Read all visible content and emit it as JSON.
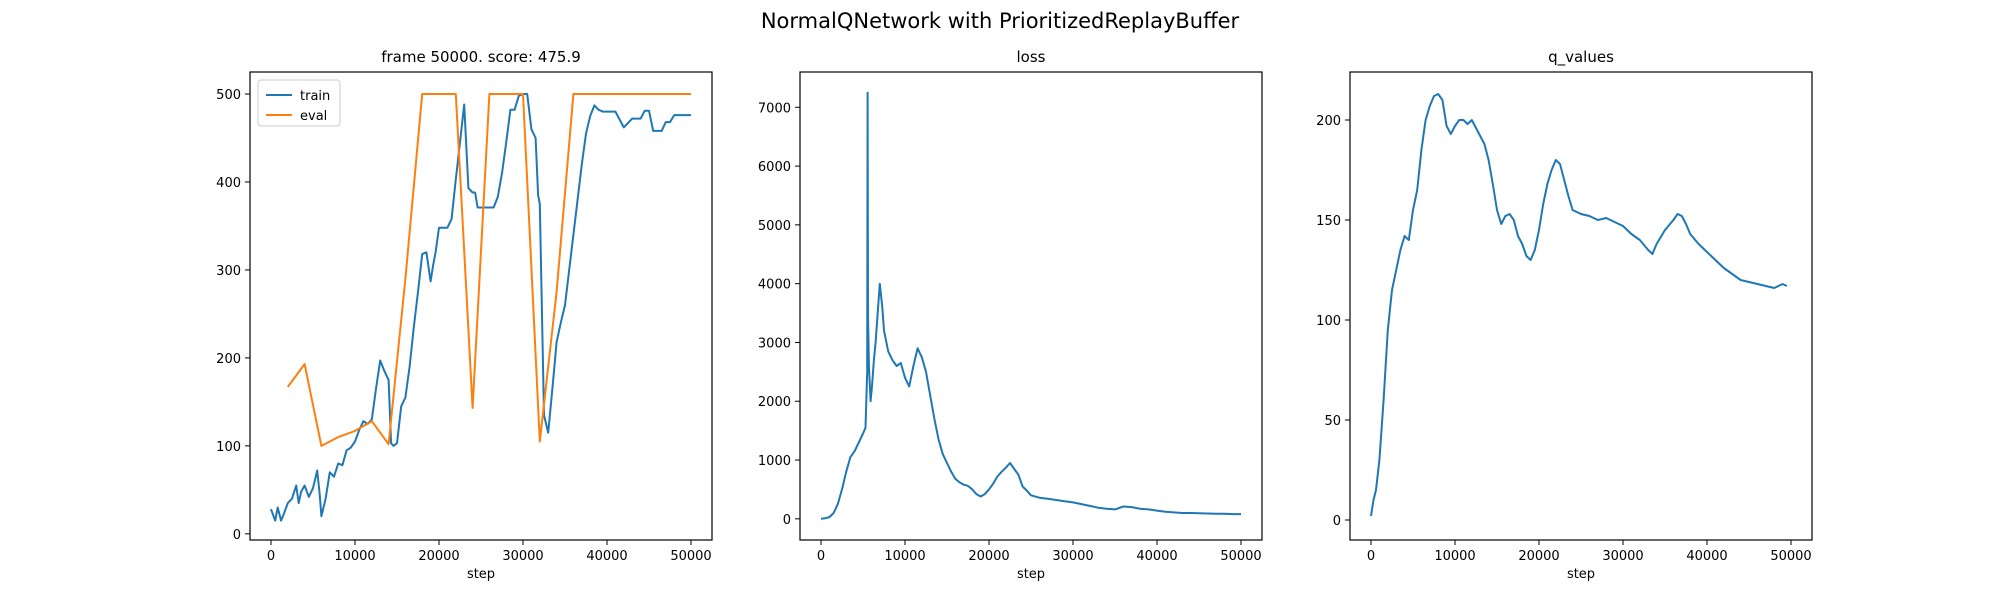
{
  "figure": {
    "suptitle": "NormalQNetwork with PrioritizedReplayBuffer"
  },
  "colors": {
    "train": "#1f77b4",
    "eval": "#ff7f0e",
    "axis": "#000000"
  },
  "chart_data": [
    {
      "id": "score",
      "type": "line",
      "title": "frame 50000. score: 475.9",
      "xlabel": "step",
      "ylabel": "",
      "xlim": [
        -2500,
        52500
      ],
      "ylim": [
        -7,
        525
      ],
      "xticks": [
        0,
        10000,
        20000,
        30000,
        40000,
        50000
      ],
      "yticks": [
        0,
        100,
        200,
        300,
        400,
        500
      ],
      "grid": false,
      "legend": "upper-left",
      "series": [
        {
          "name": "train",
          "x": [
            0,
            500,
            800,
            1200,
            1500,
            2000,
            2500,
            3000,
            3300,
            3600,
            4000,
            4500,
            5000,
            5500,
            5800,
            6000,
            6500,
            7000,
            7500,
            8000,
            8500,
            9000,
            9500,
            10000,
            10500,
            11000,
            11500,
            12000,
            12500,
            13000,
            13500,
            14000,
            14300,
            14600,
            15000,
            15500,
            16000,
            16500,
            17000,
            17500,
            18000,
            18500,
            19000,
            19300,
            19600,
            20000,
            20500,
            21000,
            21500,
            22000,
            22500,
            23000,
            23500,
            24000,
            24300,
            24600,
            25000,
            25500,
            26000,
            26500,
            27000,
            27500,
            28000,
            28500,
            29000,
            29500,
            30000,
            30500,
            31000,
            31500,
            31800,
            32000,
            32500,
            33000,
            33300,
            33600,
            34000,
            34500,
            35000,
            35500,
            36000,
            36500,
            37000,
            37500,
            38000,
            38500,
            39000,
            39500,
            40000,
            40500,
            41000,
            42000,
            43000,
            44000,
            44500,
            45000,
            45500,
            46000,
            46500,
            47000,
            47500,
            48000,
            48500,
            49000,
            49500,
            50000
          ],
          "y": [
            28,
            15,
            30,
            15,
            22,
            35,
            40,
            55,
            35,
            48,
            55,
            42,
            52,
            72,
            45,
            20,
            40,
            70,
            65,
            80,
            78,
            95,
            98,
            105,
            118,
            128,
            125,
            130,
            165,
            197,
            185,
            175,
            103,
            100,
            103,
            145,
            155,
            190,
            235,
            275,
            318,
            320,
            287,
            305,
            320,
            348,
            348,
            348,
            358,
            403,
            445,
            488,
            393,
            388,
            388,
            371,
            371,
            371,
            371,
            371,
            383,
            410,
            445,
            482,
            482,
            498,
            500,
            500,
            460,
            450,
            385,
            375,
            135,
            115,
            145,
            175,
            218,
            240,
            260,
            300,
            340,
            380,
            420,
            455,
            475,
            487,
            482,
            480,
            480,
            480,
            480,
            462,
            472,
            472,
            481,
            481,
            458,
            458,
            458,
            468,
            468,
            476,
            476,
            476,
            476,
            476
          ]
        },
        {
          "name": "eval",
          "x": [
            2000,
            4000,
            6000,
            8000,
            10000,
            12000,
            14000,
            16000,
            18000,
            20000,
            22000,
            24000,
            26000,
            28000,
            30000,
            32000,
            34000,
            36000,
            38000,
            40000,
            42000,
            44000,
            46000,
            48000,
            50000
          ],
          "y": [
            167,
            193,
            100,
            110,
            117,
            128,
            102,
            290,
            500,
            500,
            500,
            143,
            500,
            500,
            500,
            105,
            275,
            500,
            500,
            500,
            500,
            500,
            500,
            500,
            500
          ]
        }
      ]
    },
    {
      "id": "loss",
      "type": "line",
      "title": "loss",
      "xlabel": "step",
      "ylabel": "",
      "xlim": [
        -2500,
        52500
      ],
      "ylim": [
        -360,
        7600
      ],
      "xticks": [
        0,
        10000,
        20000,
        30000,
        40000,
        50000
      ],
      "yticks": [
        0,
        1000,
        2000,
        3000,
        4000,
        5000,
        6000,
        7000
      ],
      "grid": false,
      "series": [
        {
          "name": "",
          "x": [
            0,
            500,
            1000,
            1500,
            2000,
            2500,
            3000,
            3500,
            4000,
            4500,
            5000,
            5300,
            5500,
            5550,
            5600,
            5700,
            5900,
            6100,
            6300,
            6500,
            6800,
            7000,
            7300,
            7500,
            8000,
            8500,
            9000,
            9500,
            10000,
            10500,
            11000,
            11500,
            12000,
            12500,
            13000,
            13500,
            14000,
            14500,
            15000,
            15500,
            16000,
            16500,
            17000,
            17500,
            18000,
            18500,
            19000,
            19500,
            20000,
            20500,
            21000,
            21500,
            22000,
            22500,
            23000,
            23500,
            24000,
            24500,
            25000,
            26000,
            27000,
            28000,
            29000,
            30000,
            31000,
            32000,
            33000,
            34000,
            35000,
            36000,
            37000,
            38000,
            39000,
            40000,
            41000,
            42000,
            43000,
            44000,
            45000,
            46000,
            47000,
            48000,
            49000,
            50000
          ],
          "y": [
            0,
            10,
            30,
            100,
            250,
            500,
            800,
            1050,
            1150,
            1300,
            1450,
            1550,
            2500,
            7250,
            3500,
            2600,
            2000,
            2300,
            2700,
            3000,
            3600,
            4000,
            3600,
            3200,
            2850,
            2700,
            2600,
            2650,
            2400,
            2250,
            2600,
            2900,
            2750,
            2500,
            2100,
            1700,
            1350,
            1100,
            950,
            800,
            680,
            620,
            580,
            560,
            500,
            420,
            380,
            420,
            500,
            600,
            720,
            800,
            870,
            950,
            850,
            750,
            550,
            480,
            400,
            360,
            340,
            320,
            300,
            280,
            250,
            220,
            190,
            170,
            160,
            210,
            200,
            170,
            160,
            140,
            120,
            110,
            100,
            100,
            95,
            90,
            85,
            85,
            80,
            80
          ]
        }
      ]
    },
    {
      "id": "q_values",
      "type": "line",
      "title": "q_values",
      "xlabel": "step",
      "ylabel": "",
      "xlim": [
        -2500,
        52500
      ],
      "ylim": [
        -10,
        224
      ],
      "xticks": [
        0,
        10000,
        20000,
        30000,
        40000,
        50000
      ],
      "yticks": [
        0,
        50,
        100,
        150,
        200
      ],
      "grid": false,
      "series": [
        {
          "name": "",
          "x": [
            0,
            300,
            600,
            1000,
            1500,
            2000,
            2500,
            3000,
            3500,
            4000,
            4500,
            5000,
            5500,
            6000,
            6500,
            7000,
            7500,
            8000,
            8500,
            9000,
            9500,
            10000,
            10500,
            11000,
            11500,
            12000,
            12500,
            13000,
            13500,
            14000,
            14500,
            15000,
            15500,
            16000,
            16500,
            17000,
            17500,
            18000,
            18500,
            19000,
            19500,
            20000,
            20500,
            21000,
            21500,
            22000,
            22500,
            23000,
            23500,
            24000,
            24500,
            25000,
            26000,
            27000,
            28000,
            29000,
            30000,
            31000,
            32000,
            33000,
            33500,
            34000,
            35000,
            36000,
            36500,
            37000,
            37500,
            38000,
            39000,
            40000,
            41000,
            42000,
            43000,
            44000,
            45000,
            46000,
            47000,
            48000,
            49000,
            49500
          ],
          "y": [
            2,
            10,
            15,
            30,
            60,
            95,
            115,
            125,
            135,
            142,
            140,
            155,
            165,
            185,
            200,
            207,
            212,
            213,
            210,
            197,
            193,
            197,
            200,
            200,
            198,
            200,
            196,
            192,
            188,
            180,
            168,
            155,
            148,
            152,
            153,
            150,
            142,
            138,
            132,
            130,
            135,
            145,
            158,
            168,
            175,
            180,
            178,
            170,
            162,
            155,
            154,
            153,
            152,
            150,
            151,
            149,
            147,
            143,
            140,
            135,
            133,
            138,
            145,
            150,
            153,
            152,
            148,
            143,
            138,
            134,
            130,
            126,
            123,
            120,
            119,
            118,
            117,
            116,
            118,
            117
          ]
        }
      ]
    }
  ]
}
